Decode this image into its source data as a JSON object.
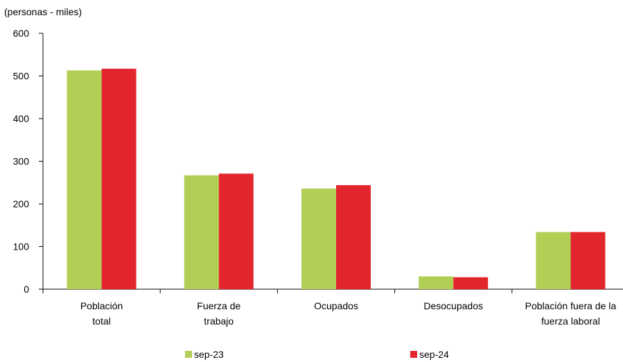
{
  "chart_data": {
    "type": "bar",
    "unit_note": "(personas - miles)",
    "categories": [
      [
        "Población",
        "total"
      ],
      [
        "Fuerza de",
        "trabajo"
      ],
      [
        "Ocupados"
      ],
      [
        "Desocupados"
      ],
      [
        "Población fuera de la",
        "fuerza laboral"
      ]
    ],
    "series": [
      {
        "name": "sep-23",
        "color": "#b2cf55",
        "values": [
          513,
          267,
          236,
          30,
          134
        ]
      },
      {
        "name": "sep-24",
        "color": "#e3262d",
        "values": [
          517,
          271,
          244,
          28,
          134
        ]
      }
    ],
    "ylim": [
      0,
      600
    ],
    "yticks": [
      0,
      100,
      200,
      300,
      400,
      500,
      600
    ],
    "grid": false,
    "legend_position": "bottom"
  }
}
